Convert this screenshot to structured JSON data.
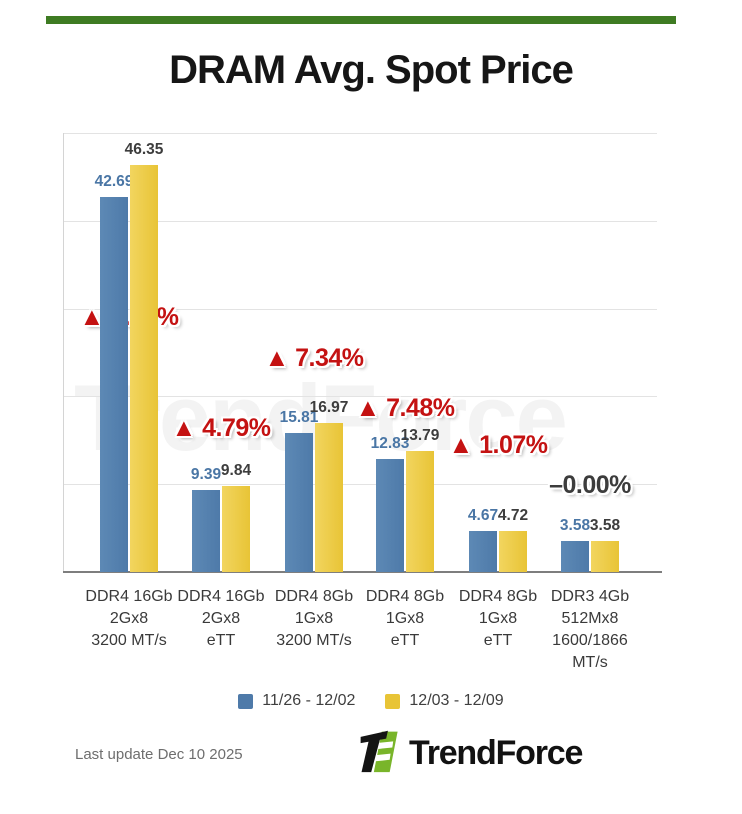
{
  "header": {
    "title": "DRAM Avg. Spot Price",
    "accent_color": "#3e7b22"
  },
  "watermark": {
    "text": "TrendForce"
  },
  "chart_data": {
    "type": "bar",
    "title": "DRAM Avg. Spot Price",
    "xlabel": "",
    "ylabel": "",
    "ylim": [
      0,
      50
    ],
    "gridline_interval": 10,
    "grid": true,
    "legend_position": "bottom",
    "categories": [
      [
        "DDR4 16Gb",
        "2Gx8",
        "3200 MT/s"
      ],
      [
        "DDR4 16Gb",
        "2Gx8",
        "eTT"
      ],
      [
        "DDR4 8Gb",
        "1Gx8",
        "3200 MT/s"
      ],
      [
        "DDR4 8Gb",
        "1Gx8",
        "eTT"
      ],
      [
        "DDR4 8Gb",
        "1Gx8",
        "eTT"
      ],
      [
        "DDR3 4Gb",
        "512Mx8",
        "1600/1866",
        "MT/s"
      ]
    ],
    "series": [
      {
        "name": "11/26 - 12/02",
        "color": "#4e7aa9",
        "color_light": "#5d89b5",
        "label_color": "#4a76a5",
        "values": [
          42.69,
          9.39,
          15.81,
          12.83,
          4.67,
          3.58
        ]
      },
      {
        "name": "12/03 - 12/09",
        "color": "#e8c436",
        "color_light": "#f2d55f",
        "label_color": "#3d3d3d",
        "values": [
          46.35,
          9.84,
          16.97,
          13.79,
          4.72,
          3.58
        ]
      }
    ],
    "changes": [
      {
        "label": "▲ 8.57%",
        "type": "up"
      },
      {
        "label": "▲ 4.79%",
        "type": "up"
      },
      {
        "label": "▲ 7.34%",
        "type": "up"
      },
      {
        "label": "▲ 7.48%",
        "type": "up"
      },
      {
        "label": "▲ 1.07%",
        "type": "up"
      },
      {
        "label": "–0.00%",
        "type": "flat"
      }
    ],
    "change_colors": {
      "up": "#c41212",
      "flat": "#3c3c3c"
    }
  },
  "footer": {
    "last_update": "Last update Dec 10 2025",
    "brand": "TrendForce"
  }
}
